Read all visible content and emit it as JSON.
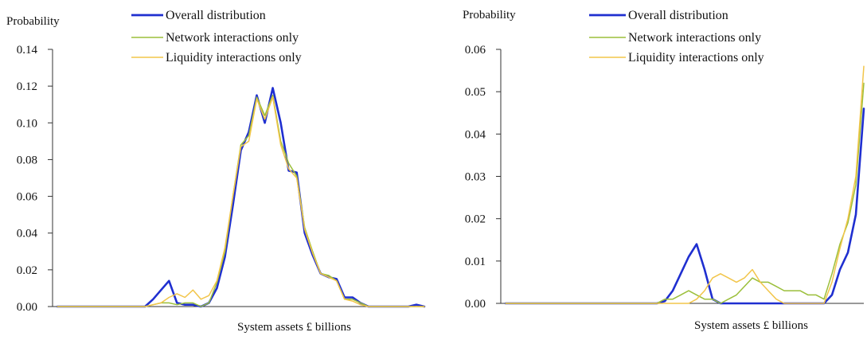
{
  "chart_data": [
    {
      "type": "line",
      "ylabel": "Probability",
      "xlabel": "System assets £ billions",
      "ylim": [
        0,
        0.14
      ],
      "yticks": [
        "0.00",
        "0.02",
        "0.04",
        "0.06",
        "0.08",
        "0.10",
        "0.12",
        "0.14"
      ],
      "xlim": [
        0,
        46
      ],
      "grid": false,
      "legend_position": "top-center",
      "series": [
        {
          "name": "Overall distribution",
          "color": "#1f2fd0",
          "x": [
            0,
            11,
            12,
            13,
            14,
            15,
            16,
            17,
            18,
            19,
            20,
            21,
            22,
            23,
            24,
            25,
            26,
            27,
            28,
            29,
            30,
            31,
            32,
            33,
            34,
            35,
            36,
            37,
            38,
            39,
            40,
            41,
            42,
            43,
            44,
            45,
            46
          ],
          "values": [
            0,
            0,
            0.004,
            0.009,
            0.014,
            0.002,
            0.001,
            0.001,
            0,
            0.002,
            0.01,
            0.027,
            0.055,
            0.085,
            0.095,
            0.115,
            0.1,
            0.119,
            0.1,
            0.074,
            0.073,
            0.04,
            0.028,
            0.018,
            0.016,
            0.015,
            0.005,
            0.005,
            0.002,
            0,
            0,
            0,
            0,
            0,
            0,
            0.001,
            0
          ]
        },
        {
          "name": "Network interactions only",
          "color": "#9bbf3a",
          "x": [
            0,
            11,
            12,
            13,
            14,
            15,
            16,
            17,
            18,
            19,
            20,
            21,
            22,
            23,
            24,
            25,
            26,
            27,
            28,
            29,
            30,
            31,
            32,
            33,
            34,
            35,
            36,
            37,
            38,
            39,
            40,
            41,
            42,
            43,
            44,
            45,
            46
          ],
          "values": [
            0,
            0,
            0.001,
            0.002,
            0.002,
            0.001,
            0.002,
            0.002,
            0,
            0.002,
            0.013,
            0.03,
            0.06,
            0.088,
            0.093,
            0.114,
            0.104,
            0.115,
            0.09,
            0.078,
            0.071,
            0.043,
            0.03,
            0.018,
            0.017,
            0.014,
            0.004,
            0.004,
            0.002,
            0,
            0,
            0,
            0,
            0,
            0,
            0,
            0
          ]
        },
        {
          "name": "Liquidity interactions only",
          "color": "#f2c54a",
          "x": [
            0,
            11,
            12,
            13,
            14,
            15,
            16,
            17,
            18,
            19,
            20,
            21,
            22,
            23,
            24,
            25,
            26,
            27,
            28,
            29,
            30,
            31,
            32,
            33,
            34,
            35,
            36,
            37,
            38,
            39,
            40,
            41,
            42,
            43,
            44,
            45,
            46
          ],
          "values": [
            0,
            0,
            0.001,
            0.002,
            0.005,
            0.007,
            0.005,
            0.009,
            0.004,
            0.006,
            0.014,
            0.032,
            0.06,
            0.087,
            0.09,
            0.113,
            0.102,
            0.114,
            0.088,
            0.075,
            0.07,
            0.042,
            0.029,
            0.018,
            0.016,
            0.014,
            0.004,
            0.003,
            0.001,
            0,
            0,
            0,
            0,
            0,
            0,
            0,
            0
          ]
        }
      ]
    },
    {
      "type": "line",
      "ylabel": "Probability",
      "xlabel": "System assets £ billions",
      "ylim": [
        0,
        0.06
      ],
      "yticks": [
        "0.00",
        "0.01",
        "0.02",
        "0.03",
        "0.04",
        "0.05",
        "0.06"
      ],
      "xlim": [
        0,
        45
      ],
      "grid": false,
      "legend_position": "top-center",
      "series": [
        {
          "name": "Overall distribution",
          "color": "#1f2fd0",
          "x": [
            0,
            19,
            20,
            21,
            22,
            23,
            24,
            25,
            26,
            27,
            28,
            29,
            30,
            31,
            32,
            33,
            34,
            35,
            36,
            37,
            38,
            39,
            40,
            41,
            42,
            43,
            44,
            45
          ],
          "values": [
            0,
            0,
            0.0005,
            0.003,
            0.007,
            0.011,
            0.014,
            0.008,
            0.001,
            0,
            0,
            0,
            0,
            0,
            0,
            0,
            0,
            0,
            0,
            0,
            0,
            0,
            0,
            0.002,
            0.008,
            0.012,
            0.021,
            0.046
          ]
        },
        {
          "name": "Network interactions only",
          "color": "#9bbf3a",
          "x": [
            0,
            19,
            20,
            21,
            22,
            23,
            24,
            25,
            26,
            27,
            28,
            29,
            30,
            31,
            32,
            33,
            34,
            35,
            36,
            37,
            38,
            39,
            40,
            41,
            42,
            43,
            44,
            45
          ],
          "values": [
            0,
            0,
            0.001,
            0.001,
            0.002,
            0.003,
            0.002,
            0.001,
            0.001,
            0,
            0.001,
            0.002,
            0.004,
            0.006,
            0.005,
            0.005,
            0.004,
            0.003,
            0.003,
            0.003,
            0.002,
            0.002,
            0.001,
            0.007,
            0.014,
            0.019,
            0.028,
            0.052
          ]
        },
        {
          "name": "Liquidity interactions only",
          "color": "#f2c54a",
          "x": [
            0,
            19,
            20,
            21,
            22,
            23,
            24,
            25,
            26,
            27,
            28,
            29,
            30,
            31,
            32,
            33,
            34,
            35,
            36,
            37,
            38,
            39,
            40,
            41,
            42,
            43,
            44,
            45
          ],
          "values": [
            0,
            0,
            0,
            0,
            0,
            0,
            0.001,
            0.003,
            0.006,
            0.007,
            0.006,
            0.005,
            0.006,
            0.008,
            0.005,
            0.003,
            0.001,
            0,
            0,
            0,
            0,
            0,
            0,
            0.005,
            0.013,
            0.02,
            0.03,
            0.056
          ]
        }
      ]
    }
  ]
}
